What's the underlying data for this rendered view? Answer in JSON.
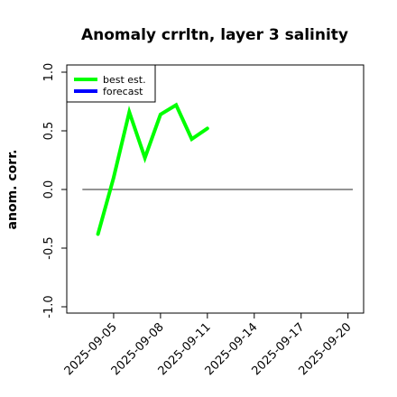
{
  "chart_data": {
    "type": "line",
    "title": "Anomaly crrltn, layer 3 salinity",
    "xlabel": "",
    "ylabel": "anom. corr.",
    "ylim": [
      -1.0,
      1.0
    ],
    "yticks": [
      -1.0,
      -0.5,
      0.0,
      0.5,
      1.0
    ],
    "ytick_labels": [
      "-1.0",
      "-0.5",
      "0.0",
      "0.5",
      "1.0"
    ],
    "xlim": [
      "2025-09-02",
      "2025-09-21"
    ],
    "xticks": [
      "2025-09-05",
      "2025-09-08",
      "2025-09-11",
      "2025-09-14",
      "2025-09-17",
      "2025-09-20"
    ],
    "highlighted_xtick": "2025-09-11",
    "highlight_color": "#228b22",
    "reference_line": 0.0,
    "grid": false,
    "legend_position": "top-left",
    "series": [
      {
        "name": "best est.",
        "color": "#00ff00",
        "x": [
          "2025-09-04",
          "2025-09-05",
          "2025-09-06",
          "2025-09-07",
          "2025-09-08",
          "2025-09-09",
          "2025-09-10",
          "2025-09-11"
        ],
        "values": [
          -0.38,
          0.1,
          0.66,
          0.27,
          0.64,
          0.72,
          0.43,
          0.52
        ]
      },
      {
        "name": "forecast",
        "color": "#0000ff",
        "x": [],
        "values": []
      }
    ]
  }
}
